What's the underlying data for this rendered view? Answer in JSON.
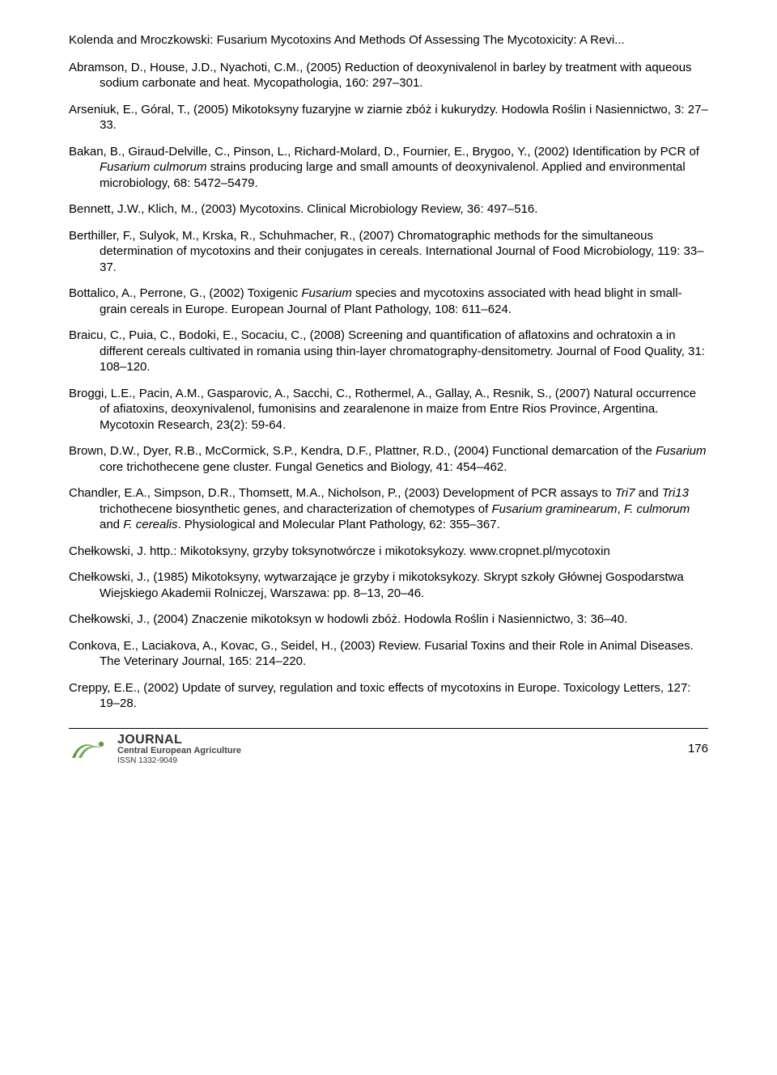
{
  "header": "Kolenda and Mroczkowski: Fusarium Mycotoxins And Methods Of Assessing The Mycotoxicity: A Revi...",
  "refs": [
    "Abramson, D., House, J.D., Nyachoti, C.M., (2005) Reduction of deoxynivalenol in barley by treatment with aqueous sodium carbonate and heat. Mycopathologia, 160: 297–301.",
    "Arseniuk, E., Góral, T., (2005) Mikotoksyny fuzaryjne w ziarnie zbóż i kukurydzy. Hodowla Roślin i Nasiennictwo, 3: 27–33.",
    "Bakan, B., Giraud-Delville, C., Pinson, L., Richard-Molard, D., Fournier, E., Brygoo, Y., (2002) Identification by PCR of <em>Fusarium culmorum</em> strains producing large and small amounts of deoxynivalenol. Applied and environmental microbiology, 68: 5472–5479.",
    "Bennett, J.W., Klich, M., (2003) Mycotoxins. Clinical Microbiology Review, 36: 497–516.",
    "Berthiller, F., Sulyok, M., Krska, R., Schuhmacher, R., (2007) Chromatographic methods for the simultaneous determination of mycotoxins and their conjugates in cereals. International Journal of Food Microbiology, 119: 33–37.",
    "Bottalico, A., Perrone, G., (2002) Toxigenic <em>Fusarium</em> species and mycotoxins associated with head blight in small-grain cereals in Europe. European Journal of Plant Pathology, 108: 611–624.",
    "Braicu, C., Puia, C., Bodoki, E., Socaciu, C., (2008) Screening and quantification of aflatoxins and ochratoxin a in different cereals cultivated in romania using thin-layer chromatography-densitometry. Journal of Food Quality, 31: 108–120.",
    "Broggi, L.E., Pacin, A.M., Gasparovic, A., Sacchi, C., Rothermel, A., Gallay, A., Resnik, S., (2007) Natural occurrence of afiatoxins, deoxynivalenol, fumonisins and zearalenone in maize from Entre Rios Province, Argentina. Mycotoxin Research, 23(2): 59-64.",
    "Brown, D.W., Dyer, R.B., McCormick, S.P., Kendra, D.F., Plattner, R.D., (2004) Functional demarcation of the <em>Fusarium</em> core trichothecene gene cluster. Fungal Genetics and Biology, 41: 454–462.",
    "Chandler, E.A., Simpson, D.R., Thomsett, M.A., Nicholson, P., (2003) Development of PCR assays to <em>Tri7</em> and <em>Tri13</em> trichothecene biosynthetic genes, and characterization of chemotypes of <em>Fusarium graminearum</em>, <em>F. culmorum</em> and <em>F. cerealis</em>. Physiological and Molecular Plant Pathology, 62: 355–367.",
    "Chełkowski, J. http.: Mikotoksyny, grzyby toksynotwórcze i mikotoksykozy. www.cropnet.pl/mycotoxin",
    "Chełkowski, J., (1985) Mikotoksyny, wytwarzające je grzyby i mikotoksykozy. Skrypt szkoły Głównej Gospodarstwa Wiejskiego Akademii Rolniczej, Warszawa: pp. 8–13, 20–46.",
    "Chełkowski, J., (2004) Znaczenie mikotoksyn w hodowli zbóż. Hodowla Roślin i Nasiennictwo, 3: 36–40.",
    "Conkova, E., Laciakova, A., Kovac, G., Seidel, H., (2003) Review. Fusarial Toxins and their Role in Animal Diseases. The Veterinary Journal, 165: 214–220.",
    "Creppy, E.E., (2002) Update of survey, regulation and toxic effects of mycotoxins in Europe. Toxicology Letters, 127: 19–28."
  ],
  "journal": {
    "line1": "JOURNAL",
    "line2": "Central European Agriculture",
    "issn": "ISSN 1332-9049"
  },
  "page": "176",
  "colors": {
    "text": "#000000",
    "bg": "#ffffff",
    "rule": "#000000",
    "logo_green": "#5a9e3d",
    "logo_dark": "#333333"
  }
}
